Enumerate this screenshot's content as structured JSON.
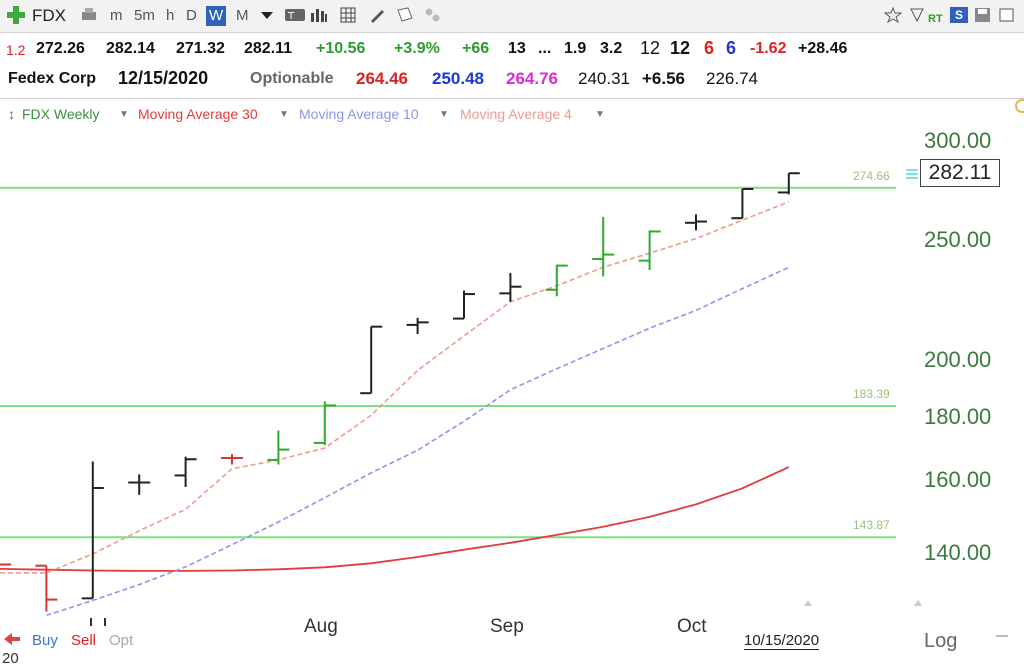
{
  "toolbar": {
    "symbol": "FDX",
    "periods": [
      "m",
      "5m",
      "h",
      "D",
      "W",
      "M"
    ],
    "active_period": "W",
    "rt_label": "RT",
    "s_label": "S"
  },
  "quote": {
    "row1": [
      "1.2",
      "272.26",
      "282.14",
      "271.32",
      "282.11",
      "+10.56",
      "+3.9%",
      "+66",
      "13",
      "...",
      "1.9",
      "3.2",
      "12",
      "12",
      "6",
      "6",
      "-1.62",
      "+28.46"
    ],
    "company": "Fedex Corp",
    "date": "12/15/2020",
    "optionable": "Optionable",
    "row2": [
      "264.46",
      "250.48",
      "264.76",
      "240.31",
      "+6.56",
      "226.74"
    ]
  },
  "legend": {
    "main": "FDX Weekly",
    "ma30": "Moving Average 30",
    "ma10": "Moving Average 10",
    "ma4": "Moving Average 4"
  },
  "colors": {
    "up": "#2eaa2e",
    "down": "#222222",
    "red_bar": "#d33333",
    "ma30": "#e03c3c",
    "ma10": "#8a96ee",
    "ma4": "#ef9a8e",
    "hline": "#7fe07f"
  },
  "last_price": "282.11",
  "chart_data": {
    "type": "ohlc",
    "y_scale": "log",
    "ylim": [
      122,
      310
    ],
    "y_ticks": [
      "300.00",
      "250.00",
      "200.00",
      "180.00",
      "160.00",
      "140.00"
    ],
    "x_ticks": [
      "Aug",
      "Sep",
      "Oct"
    ],
    "x_tick_index": [
      7.0,
      11.0,
      15.0
    ],
    "date_label": "10/15/2020",
    "scale_label": "Log",
    "horizontal_lines": [
      274.66,
      183.39,
      143.87
    ],
    "horizontal_line_labels": [
      "274.66",
      "183.39",
      "143.87"
    ],
    "bars": [
      {
        "o": 137.5,
        "h": 137.5,
        "l": 137.5,
        "c": 136.8,
        "dir": "red"
      },
      {
        "o": 136.5,
        "h": 136.5,
        "l": 125.4,
        "c": 128.2,
        "dir": "red"
      },
      {
        "o": 128.5,
        "h": 165.5,
        "l": 128.5,
        "c": 157.6,
        "dir": "down"
      },
      {
        "o": 159.2,
        "h": 161.6,
        "l": 155.6,
        "c": 159.2,
        "dir": "down"
      },
      {
        "o": 161.3,
        "h": 167.0,
        "l": 157.9,
        "c": 166.2,
        "dir": "down"
      },
      {
        "o": 166.6,
        "h": 167.8,
        "l": 164.6,
        "c": 166.6,
        "dir": "red"
      },
      {
        "o": 166.0,
        "h": 175.3,
        "l": 164.6,
        "c": 169.2,
        "dir": "up"
      },
      {
        "o": 171.3,
        "h": 185.0,
        "l": 170.6,
        "c": 183.6,
        "dir": "up"
      },
      {
        "o": 187.8,
        "h": 212.4,
        "l": 187.8,
        "c": 212.4,
        "dir": "down"
      },
      {
        "o": 213.1,
        "h": 215.9,
        "l": 209.5,
        "c": 214.1,
        "dir": "down"
      },
      {
        "o": 215.6,
        "h": 227.1,
        "l": 215.6,
        "c": 225.6,
        "dir": "down"
      },
      {
        "o": 225.9,
        "h": 234.6,
        "l": 222.4,
        "c": 228.7,
        "dir": "down"
      },
      {
        "o": 227.4,
        "h": 238.2,
        "l": 224.7,
        "c": 237.8,
        "dir": "up"
      },
      {
        "o": 240.7,
        "h": 260.2,
        "l": 233.1,
        "c": 242.7,
        "dir": "up"
      },
      {
        "o": 240.0,
        "h": 253.8,
        "l": 235.9,
        "c": 253.3,
        "dir": "up"
      },
      {
        "o": 257.4,
        "h": 261.5,
        "l": 253.8,
        "c": 258.0,
        "dir": "down"
      },
      {
        "o": 259.6,
        "h": 274.0,
        "l": 259.6,
        "c": 274.0,
        "dir": "down"
      },
      {
        "o": 272.26,
        "h": 282.14,
        "l": 271.32,
        "c": 282.11,
        "dir": "down"
      }
    ],
    "series": [
      {
        "name": "Moving Average 30",
        "values": [
          135.7,
          135.5,
          135.3,
          135.2,
          135.2,
          135.3,
          135.6,
          136.1,
          137.1,
          138.7,
          140.6,
          142.4,
          144.5,
          146.7,
          149.4,
          152.9,
          157.5,
          163.8
        ]
      },
      {
        "name": "Moving Average 10",
        "values": [
          null,
          124.5,
          128.0,
          131.8,
          136.2,
          141.9,
          148.0,
          154.8,
          162.1,
          169.0,
          178.3,
          189.0,
          196.5,
          204.0,
          211.8,
          218.9,
          227.9,
          237.0
        ]
      },
      {
        "name": "Moving Average 4",
        "values": [
          134.7,
          134.7,
          139.5,
          145.6,
          151.5,
          163.3,
          166.0,
          169.7,
          180.3,
          195.9,
          208.8,
          222.4,
          229.1,
          237.1,
          243.3,
          250.0,
          258.7,
          267.6
        ]
      }
    ]
  },
  "bottom": {
    "twenty": "20",
    "buy": "Buy",
    "sell": "Sell",
    "opt": "Opt"
  }
}
